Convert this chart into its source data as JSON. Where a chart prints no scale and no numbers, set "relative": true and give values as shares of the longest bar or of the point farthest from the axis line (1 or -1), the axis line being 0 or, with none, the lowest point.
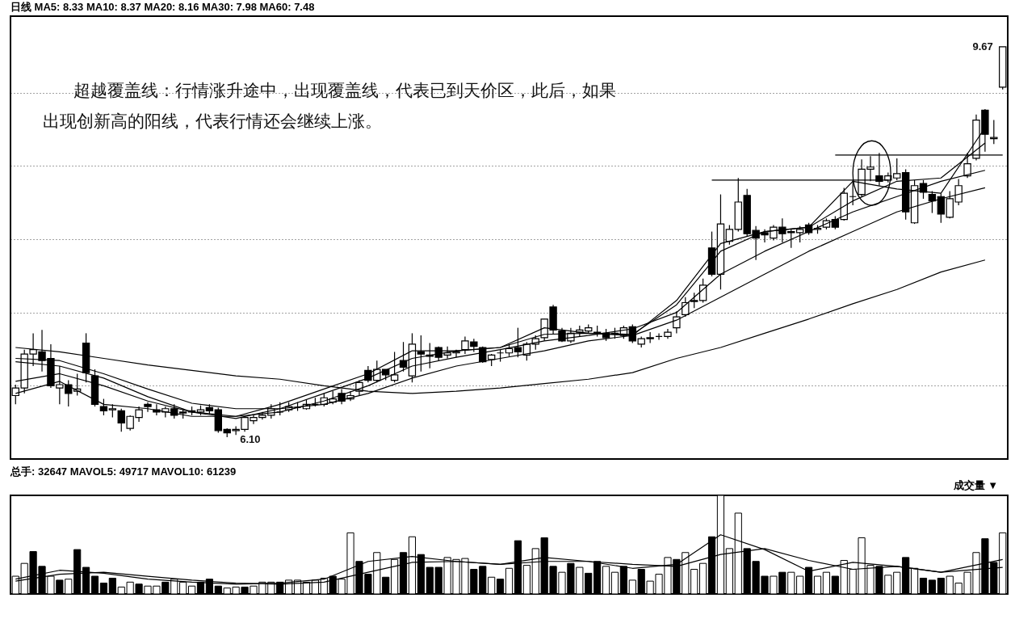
{
  "chart_data": [
    {
      "type": "candlestick",
      "title": "日线  MA5: 8.33 MA10: 8.37 MA20: 8.16 MA30: 7.98 MA60: 7.48",
      "categories": [
        null,
        null,
        null,
        null,
        null,
        null,
        null,
        null,
        null,
        null,
        null,
        null,
        null,
        null,
        null,
        null,
        null,
        null,
        null,
        null,
        null,
        null,
        null,
        null,
        null,
        null,
        null,
        null,
        null,
        null,
        null,
        null,
        null,
        null,
        null,
        null,
        null,
        null,
        null,
        null,
        null,
        null,
        null,
        null,
        null,
        null,
        null,
        null,
        null,
        null,
        null,
        null,
        null,
        null,
        null,
        null,
        null,
        null,
        null,
        null,
        null,
        null,
        null,
        null,
        null,
        null,
        null,
        null,
        null,
        null,
        null,
        null,
        null,
        null,
        null,
        null,
        null,
        null,
        null,
        null,
        null,
        null,
        null,
        null,
        null,
        null,
        null,
        null,
        null,
        null,
        null,
        null,
        null,
        null,
        null,
        null,
        null,
        null,
        null,
        null,
        null,
        null,
        null,
        null,
        null,
        null,
        null,
        null,
        null,
        null,
        null,
        null,
        null
      ],
      "ohlc": [
        [
          6.48,
          6.58,
          6.4,
          6.55
        ],
        [
          6.55,
          6.9,
          6.5,
          6.86
        ],
        [
          6.86,
          7.05,
          6.75,
          6.9
        ],
        [
          6.88,
          7.08,
          6.7,
          6.8
        ],
        [
          6.82,
          6.95,
          6.55,
          6.57
        ],
        [
          6.55,
          6.75,
          6.4,
          6.58
        ],
        [
          6.58,
          6.62,
          6.38,
          6.5
        ],
        [
          6.52,
          6.68,
          6.48,
          6.54
        ],
        [
          6.96,
          7.05,
          6.6,
          6.69
        ],
        [
          6.66,
          6.72,
          6.38,
          6.4
        ],
        [
          6.38,
          6.45,
          6.3,
          6.34
        ],
        [
          6.35,
          6.4,
          6.28,
          6.36
        ],
        [
          6.34,
          6.36,
          6.15,
          6.23
        ],
        [
          6.18,
          6.3,
          6.16,
          6.29
        ],
        [
          6.28,
          6.38,
          6.24,
          6.35
        ],
        [
          6.4,
          6.42,
          6.33,
          6.38
        ],
        [
          6.35,
          6.4,
          6.3,
          6.33
        ],
        [
          6.33,
          6.38,
          6.28,
          6.36
        ],
        [
          6.36,
          6.4,
          6.27,
          6.3
        ],
        [
          6.32,
          6.36,
          6.27,
          6.33
        ],
        [
          6.34,
          6.38,
          6.3,
          6.33
        ],
        [
          6.33,
          6.39,
          6.3,
          6.35
        ],
        [
          6.37,
          6.4,
          6.31,
          6.34
        ],
        [
          6.35,
          6.37,
          6.14,
          6.16
        ],
        [
          6.17,
          6.18,
          6.1,
          6.14
        ],
        [
          6.16,
          6.2,
          6.12,
          6.17
        ],
        [
          6.17,
          6.29,
          6.15,
          6.28
        ],
        [
          6.25,
          6.3,
          6.22,
          6.28
        ],
        [
          6.28,
          6.33,
          6.26,
          6.3
        ],
        [
          6.3,
          6.4,
          6.27,
          6.36
        ],
        [
          6.33,
          6.42,
          6.3,
          6.33
        ],
        [
          6.35,
          6.42,
          6.33,
          6.38
        ],
        [
          6.37,
          6.42,
          6.34,
          6.37
        ],
        [
          6.36,
          6.44,
          6.35,
          6.4
        ],
        [
          6.4,
          6.46,
          6.38,
          6.4
        ],
        [
          6.4,
          6.5,
          6.38,
          6.46
        ],
        [
          6.42,
          6.52,
          6.4,
          6.45
        ],
        [
          6.5,
          6.54,
          6.4,
          6.43
        ],
        [
          6.45,
          6.52,
          6.43,
          6.48
        ],
        [
          6.52,
          6.62,
          6.48,
          6.6
        ],
        [
          6.71,
          6.75,
          6.6,
          6.62
        ],
        [
          6.62,
          6.8,
          6.6,
          6.72
        ],
        [
          6.72,
          6.72,
          6.62,
          6.67
        ],
        [
          6.62,
          6.88,
          6.6,
          6.67
        ],
        [
          6.8,
          6.97,
          6.7,
          6.74
        ],
        [
          6.66,
          7.05,
          6.6,
          6.95
        ],
        [
          6.88,
          7.03,
          6.7,
          6.86
        ],
        [
          6.85,
          6.96,
          6.73,
          6.84
        ],
        [
          6.92,
          6.93,
          6.8,
          6.83
        ],
        [
          6.85,
          6.93,
          6.82,
          6.87
        ],
        [
          6.87,
          6.9,
          6.83,
          6.88
        ],
        [
          6.9,
          7.02,
          6.86,
          6.98
        ],
        [
          6.97,
          7.0,
          6.88,
          6.93
        ],
        [
          6.92,
          6.93,
          6.78,
          6.79
        ],
        [
          6.81,
          6.86,
          6.75,
          6.85
        ],
        [
          6.87,
          6.9,
          6.79,
          6.87
        ],
        [
          6.87,
          6.95,
          6.84,
          6.91
        ],
        [
          6.92,
          7.1,
          6.83,
          6.88
        ],
        [
          6.85,
          6.97,
          6.8,
          6.95
        ],
        [
          6.95,
          7.03,
          6.9,
          7.0
        ],
        [
          7.01,
          7.18,
          6.98,
          7.18
        ],
        [
          7.29,
          7.31,
          7.04,
          7.08
        ],
        [
          7.07,
          7.1,
          6.97,
          6.98
        ],
        [
          6.98,
          7.1,
          6.96,
          7.05
        ],
        [
          7.06,
          7.12,
          7.02,
          7.08
        ],
        [
          7.07,
          7.13,
          7.05,
          7.1
        ],
        [
          7.06,
          7.12,
          7.02,
          7.05
        ],
        [
          7.05,
          7.09,
          6.98,
          7.01
        ],
        [
          7.05,
          7.1,
          7.0,
          7.04
        ],
        [
          7.03,
          7.12,
          7.0,
          7.1
        ],
        [
          7.11,
          7.13,
          6.96,
          6.98
        ],
        [
          6.95,
          7.02,
          6.92,
          7.0
        ],
        [
          7.0,
          7.06,
          6.96,
          7.01
        ],
        [
          7.02,
          7.05,
          6.99,
          7.02
        ],
        [
          7.02,
          7.09,
          7.0,
          7.06
        ],
        [
          7.1,
          7.25,
          7.05,
          7.2
        ],
        [
          7.22,
          7.38,
          7.2,
          7.33
        ],
        [
          7.34,
          7.42,
          7.28,
          7.35
        ],
        [
          7.35,
          7.55,
          7.33,
          7.49
        ],
        [
          7.83,
          7.98,
          7.57,
          7.59
        ],
        [
          7.59,
          8.32,
          7.45,
          8.05
        ],
        [
          7.89,
          8.04,
          7.86,
          8.0
        ],
        [
          8.0,
          8.47,
          7.98,
          8.25
        ],
        [
          8.31,
          8.37,
          7.94,
          7.96
        ],
        [
          7.99,
          8.03,
          7.72,
          7.92
        ],
        [
          7.97,
          8.0,
          7.88,
          7.95
        ],
        [
          7.92,
          8.04,
          7.9,
          8.02
        ],
        [
          8.02,
          8.1,
          7.88,
          7.96
        ],
        [
          7.97,
          8.0,
          7.83,
          7.98
        ],
        [
          7.97,
          8.03,
          7.88,
          8.0
        ],
        [
          8.04,
          8.06,
          7.95,
          7.97
        ],
        [
          8.0,
          8.04,
          7.96,
          8.01
        ],
        [
          8.02,
          8.1,
          8.0,
          8.08
        ],
        [
          8.09,
          8.12,
          8.0,
          8.02
        ],
        [
          8.09,
          8.38,
          8.08,
          8.33
        ],
        [
          8.3,
          8.45,
          8.22,
          8.3
        ],
        [
          8.32,
          8.64,
          8.3,
          8.55
        ],
        [
          8.55,
          8.67,
          8.44,
          8.57
        ],
        [
          8.49,
          8.7,
          8.4,
          8.44
        ],
        [
          8.45,
          8.52,
          8.43,
          8.49
        ],
        [
          8.47,
          8.65,
          8.45,
          8.51
        ],
        [
          8.52,
          8.55,
          8.09,
          8.16
        ],
        [
          8.06,
          8.45,
          8.05,
          8.4
        ],
        [
          8.42,
          8.45,
          8.28,
          8.34
        ],
        [
          8.32,
          8.35,
          8.15,
          8.26
        ],
        [
          8.3,
          8.33,
          8.06,
          8.14
        ],
        [
          8.11,
          8.35,
          8.1,
          8.28
        ],
        [
          8.25,
          8.46,
          8.22,
          8.4
        ],
        [
          8.49,
          8.7,
          8.47,
          8.6
        ],
        [
          8.65,
          9.05,
          8.63,
          9.0
        ],
        [
          9.09,
          9.1,
          8.71,
          8.87
        ],
        [
          8.83,
          9.0,
          8.78,
          8.84
        ],
        [
          9.3,
          9.67,
          9.28,
          9.67
        ]
      ],
      "series": [
        {
          "type": "line",
          "color": "#000000",
          "values": [
            6.5,
            null,
            null,
            null,
            null,
            6.61,
            null,
            null,
            null,
            null,
            6.4,
            null,
            null,
            null,
            null,
            6.36,
            null,
            null,
            null,
            null,
            6.29,
            null,
            null,
            null,
            null,
            6.29,
            null,
            null,
            null,
            null,
            6.4,
            null,
            null,
            null,
            null,
            6.54,
            null,
            null,
            null,
            null,
            6.68,
            null,
            null,
            null,
            null,
            6.89,
            null,
            null,
            null,
            null,
            6.89,
            null,
            null,
            null,
            null,
            6.92,
            null,
            null,
            null,
            null,
            7.1,
            null,
            null,
            null,
            null,
            7.05,
            null,
            null,
            null,
            null,
            7.03,
            null,
            null,
            null,
            null,
            7.35,
            null,
            null,
            null,
            null,
            7.87,
            null,
            null,
            null,
            null,
            7.98,
            null,
            null,
            null,
            null,
            8.02,
            null,
            null,
            null,
            null,
            8.44,
            null,
            null,
            null,
            null,
            8.37,
            null,
            null,
            null,
            null,
            8.33,
            null,
            null,
            null,
            null,
            8.93,
            null,
            null
          ]
        },
        {
          "type": "line",
          "color": "#000000",
          "values": [
            6.61,
            null,
            null,
            null,
            null,
            6.68,
            null,
            null,
            null,
            null,
            6.57,
            null,
            null,
            null,
            null,
            6.43,
            null,
            null,
            null,
            null,
            6.33,
            null,
            null,
            null,
            null,
            6.27,
            null,
            null,
            null,
            null,
            6.36,
            null,
            null,
            null,
            null,
            6.5,
            null,
            null,
            null,
            null,
            6.64,
            null,
            null,
            null,
            null,
            6.82,
            null,
            null,
            null,
            null,
            6.89,
            null,
            null,
            null,
            null,
            6.92,
            null,
            null,
            null,
            null,
            7.04,
            null,
            null,
            null,
            null,
            7.05,
            null,
            null,
            null,
            null,
            7.04,
            null,
            null,
            null,
            null,
            7.31,
            null,
            null,
            null,
            null,
            7.8,
            null,
            null,
            null,
            null,
            7.98,
            null,
            null,
            null,
            null,
            8.02,
            null,
            null,
            null,
            null,
            8.26,
            null,
            null,
            null,
            null,
            8.44,
            null,
            null,
            null,
            null,
            8.47,
            null,
            null,
            null,
            null,
            8.79,
            null,
            null
          ]
        },
        {
          "type": "line",
          "color": "#000000",
          "values": [
            6.79,
            null,
            null,
            null,
            null,
            6.75,
            null,
            null,
            null,
            null,
            6.64,
            null,
            null,
            null,
            null,
            6.47,
            null,
            null,
            null,
            null,
            6.33,
            null,
            null,
            null,
            null,
            6.29,
            null,
            null,
            null,
            null,
            6.33,
            null,
            null,
            null,
            null,
            6.43,
            null,
            null,
            null,
            null,
            6.57,
            null,
            null,
            null,
            null,
            6.75,
            null,
            null,
            null,
            null,
            6.83,
            null,
            null,
            null,
            null,
            6.9,
            null,
            null,
            null,
            null,
            6.98,
            null,
            null,
            null,
            null,
            7.03,
            null,
            null,
            null,
            null,
            7.09,
            null,
            null,
            null,
            null,
            7.24,
            null,
            null,
            null,
            null,
            7.59,
            null,
            null,
            null,
            null,
            7.8,
            null,
            null,
            null,
            null,
            7.98,
            null,
            null,
            null,
            null,
            8.16,
            null,
            null,
            null,
            null,
            8.3,
            null,
            null,
            null,
            null,
            8.44,
            null,
            null,
            null,
            null,
            8.54,
            null,
            null
          ]
        },
        {
          "type": "line",
          "color": "#000000",
          "values": [
            6.82,
            null,
            null,
            null,
            null,
            6.8,
            null,
            null,
            null,
            null,
            6.68,
            null,
            null,
            null,
            null,
            6.54,
            null,
            null,
            null,
            null,
            6.41,
            null,
            null,
            null,
            null,
            6.36,
            null,
            null,
            null,
            null,
            6.36,
            null,
            null,
            null,
            null,
            6.4,
            null,
            null,
            null,
            null,
            6.5,
            null,
            null,
            null,
            null,
            6.64,
            null,
            null,
            null,
            null,
            6.75,
            null,
            null,
            null,
            null,
            6.82,
            null,
            null,
            null,
            null,
            6.89,
            null,
            null,
            null,
            null,
            6.98,
            null,
            null,
            null,
            null,
            7.03,
            null,
            null,
            null,
            null,
            7.17,
            null,
            null,
            null,
            null,
            7.38,
            null,
            null,
            null,
            null,
            7.59,
            null,
            null,
            null,
            null,
            7.8,
            null,
            null,
            null,
            null,
            7.98,
            null,
            null,
            null,
            null,
            8.16,
            null,
            null,
            null,
            null,
            8.28,
            null,
            null,
            null,
            null,
            8.38,
            null,
            null
          ]
        },
        {
          "type": "line",
          "color": "#000000",
          "values": [
            6.92,
            null,
            null,
            null,
            null,
            6.88,
            null,
            null,
            null,
            null,
            6.82,
            null,
            null,
            null,
            null,
            6.76,
            null,
            null,
            null,
            null,
            6.71,
            null,
            null,
            null,
            null,
            6.66,
            null,
            null,
            null,
            null,
            6.63,
            null,
            null,
            null,
            null,
            6.57,
            null,
            null,
            null,
            null,
            6.52,
            null,
            null,
            null,
            null,
            6.5,
            null,
            null,
            null,
            null,
            6.52,
            null,
            null,
            null,
            null,
            6.55,
            null,
            null,
            null,
            null,
            6.59,
            null,
            null,
            null,
            null,
            6.63,
            null,
            null,
            null,
            null,
            6.69,
            null,
            null,
            null,
            null,
            6.82,
            null,
            null,
            null,
            null,
            6.92,
            null,
            null,
            null,
            null,
            7.05,
            null,
            null,
            null,
            null,
            7.18,
            null,
            null,
            null,
            null,
            7.32,
            null,
            null,
            null,
            null,
            7.45,
            null,
            null,
            null,
            null,
            7.61,
            null,
            null,
            null,
            null,
            7.72,
            null,
            null
          ]
        },
        {
          "type": "line",
          "color": "#000000",
          "values": [
            null,
            null,
            null,
            null,
            null,
            null,
            null,
            null,
            null,
            null,
            null,
            null,
            null,
            null,
            null,
            null,
            null,
            null,
            null,
            null,
            null,
            null,
            null,
            null,
            null,
            null,
            null,
            null,
            null,
            null,
            null,
            null,
            null,
            null,
            null,
            null,
            null,
            null,
            null,
            null,
            null,
            null,
            null,
            null,
            null,
            null,
            null,
            null,
            null,
            null,
            null,
            null,
            null,
            null,
            null,
            null,
            null,
            null,
            null,
            null,
            null,
            null,
            null,
            null,
            null,
            null,
            null,
            null,
            null,
            null,
            null,
            null,
            null,
            null,
            null,
            null,
            null,
            null,
            null,
            8.45,
            8.45,
            8.45,
            8.45,
            8.45,
            8.45,
            8.45,
            8.45,
            8.45,
            8.45,
            8.45,
            8.45,
            8.45,
            8.45,
            8.45,
            8.45,
            8.45,
            8.45,
            8.45,
            8.45,
            8.45,
            null,
            null,
            null,
            null,
            null,
            null,
            null,
            null,
            null,
            null,
            null,
            null,
            null
          ]
        },
        {
          "type": "line",
          "color": "#000000",
          "values": [
            null,
            null,
            null,
            null,
            null,
            null,
            null,
            null,
            null,
            null,
            null,
            null,
            null,
            null,
            null,
            null,
            null,
            null,
            null,
            null,
            null,
            null,
            null,
            null,
            null,
            null,
            null,
            null,
            null,
            null,
            null,
            null,
            null,
            null,
            null,
            null,
            null,
            null,
            null,
            null,
            null,
            null,
            null,
            null,
            null,
            null,
            null,
            null,
            null,
            null,
            null,
            null,
            null,
            null,
            null,
            null,
            null,
            null,
            null,
            null,
            null,
            null,
            null,
            null,
            null,
            null,
            null,
            null,
            null,
            null,
            null,
            null,
            null,
            null,
            null,
            null,
            null,
            null,
            null,
            null,
            null,
            null,
            null,
            null,
            null,
            null,
            null,
            null,
            null,
            null,
            null,
            null,
            null,
            8.68,
            8.68,
            8.68,
            8.68,
            8.68,
            8.68,
            8.68,
            8.68,
            8.68,
            8.68,
            8.68,
            8.68,
            8.68,
            8.68,
            8.68,
            8.68,
            8.68,
            8.68,
            8.68,
            8.68
          ]
        }
      ],
      "ylim": [
        5.9,
        9.95
      ],
      "yticks": [
        {
          "value": 6.57,
          "label": null
        },
        {
          "value": 7.24,
          "label": null
        },
        {
          "value": 7.91,
          "label": null
        },
        {
          "value": 8.58,
          "label": null
        },
        {
          "value": 9.25,
          "label": null
        }
      ],
      "grid": "y",
      "annotations": [
        "超越覆盖线：行情涨升途中，出现覆盖线，代表已到天价区，此后，如果",
        "出现创新高的阳线，代表行情还会继续上涨。",
        "9.67",
        "6.10"
      ]
    },
    {
      "type": "bar",
      "relative": true,
      "title": "总手: 32647 MAVOL5: 49717 MAVOL10: 61239",
      "categories": [
        null,
        null,
        null,
        null,
        null,
        null,
        null,
        null,
        null,
        null,
        null,
        null,
        null,
        null,
        null,
        null,
        null,
        null,
        null,
        null,
        null,
        null,
        null,
        null,
        null,
        null,
        null,
        null,
        null,
        null,
        null,
        null,
        null,
        null,
        null,
        null,
        null,
        null,
        null,
        null,
        null,
        null,
        null,
        null,
        null,
        null,
        null,
        null,
        null,
        null,
        null,
        null,
        null,
        null,
        null,
        null,
        null,
        null,
        null,
        null,
        null,
        null,
        null,
        null,
        null,
        null,
        null,
        null,
        null,
        null,
        null,
        null,
        null,
        null,
        null,
        null,
        null,
        null,
        null,
        null,
        null,
        null,
        null,
        null,
        null,
        null,
        null,
        null,
        null,
        null,
        null,
        null,
        null,
        null,
        null,
        null,
        null,
        null,
        null,
        null,
        null,
        null,
        null,
        null,
        null,
        null,
        null,
        null,
        null,
        null,
        null,
        null,
        null
      ],
      "series": [
        {
          "type": "bar",
          "values": [
            0.18,
            0.31,
            0.43,
            0.28,
            0.18,
            0.14,
            0.15,
            0.45,
            0.27,
            0.18,
            0.11,
            0.16,
            0.07,
            0.12,
            0.1,
            0.08,
            0.08,
            0.12,
            0.15,
            0.12,
            0.08,
            0.12,
            0.15,
            0.08,
            0.06,
            0.07,
            0.07,
            0.08,
            0.12,
            0.12,
            0.12,
            0.14,
            0.14,
            0.12,
            0.14,
            0.16,
            0.18,
            0.15,
            0.62,
            0.33,
            0.2,
            0.42,
            0.17,
            0.35,
            0.42,
            0.58,
            0.4,
            0.27,
            0.27,
            0.37,
            0.35,
            0.36,
            0.25,
            0.28,
            0.17,
            0.15,
            0.26,
            0.54,
            0.29,
            0.46,
            0.57,
            0.28,
            0.22,
            0.31,
            0.27,
            0.21,
            0.33,
            0.28,
            0.22,
            0.28,
            0.14,
            0.25,
            0.13,
            0.2,
            0.37,
            0.35,
            0.42,
            0.25,
            0.31,
            0.58,
            1.0,
            0.46,
            0.82,
            0.46,
            0.33,
            0.18,
            0.18,
            0.22,
            0.22,
            0.18,
            0.27,
            0.18,
            0.22,
            0.18,
            0.34,
            0.25,
            0.57,
            0.29,
            0.28,
            0.19,
            0.22,
            0.37,
            0.26,
            0.16,
            0.14,
            0.16,
            0.18,
            0.11,
            0.22,
            0.42,
            0.56,
            0.32,
            0.62
          ],
          "colors": [
            "#ffffff",
            "#ffffff",
            "#000000",
            "#000000",
            "#ffffff",
            "#000000",
            "#ffffff",
            "#000000",
            "#000000",
            "#000000",
            "#000000",
            "#000000",
            "#ffffff",
            "#ffffff",
            "#000000",
            "#ffffff",
            "#ffffff",
            "#000000",
            "#ffffff",
            "#ffffff",
            "#ffffff",
            "#000000",
            "#000000",
            "#000000",
            "#ffffff",
            "#ffffff",
            "#000000",
            "#ffffff",
            "#ffffff",
            "#ffffff",
            "#000000",
            "#ffffff",
            "#ffffff",
            "#ffffff",
            "#ffffff",
            "#ffffff",
            "#000000",
            "#ffffff",
            "#ffffff",
            "#000000",
            "#000000",
            "#ffffff",
            "#000000",
            "#ffffff",
            "#000000",
            "#ffffff",
            "#000000",
            "#000000",
            "#000000",
            "#ffffff",
            "#ffffff",
            "#ffffff",
            "#000000",
            "#000000",
            "#ffffff",
            "#000000",
            "#ffffff",
            "#000000",
            "#ffffff",
            "#ffffff",
            "#000000",
            "#000000",
            "#ffffff",
            "#000000",
            "#ffffff",
            "#000000",
            "#000000",
            "#ffffff",
            "#ffffff",
            "#000000",
            "#ffffff",
            "#000000",
            "#ffffff",
            "#ffffff",
            "#ffffff",
            "#000000",
            "#ffffff",
            "#ffffff",
            "#ffffff",
            "#000000",
            "#ffffff",
            "#ffffff",
            "#ffffff",
            "#000000",
            "#000000",
            "#000000",
            "#ffffff",
            "#000000",
            "#ffffff",
            "#ffffff",
            "#000000",
            "#ffffff",
            "#ffffff",
            "#000000",
            "#ffffff",
            "#ffffff",
            "#ffffff",
            "#ffffff",
            "#000000",
            "#ffffff",
            "#ffffff",
            "#000000",
            "#ffffff",
            "#000000",
            "#000000",
            "#000000",
            "#ffffff",
            "#ffffff",
            "#ffffff",
            "#ffffff",
            "#000000",
            "#000000",
            "#ffffff"
          ]
        },
        {
          "type": "line",
          "color": "#000000",
          "values": [
            0.15,
            null,
            null,
            null,
            null,
            0.24,
            null,
            null,
            null,
            null,
            0.21,
            null,
            null,
            null,
            null,
            0.15,
            null,
            null,
            null,
            null,
            0.12,
            null,
            null,
            null,
            null,
            0.1,
            null,
            null,
            null,
            null,
            0.11,
            null,
            null,
            null,
            null,
            0.15,
            null,
            null,
            null,
            null,
            0.33,
            null,
            null,
            null,
            null,
            0.38,
            null,
            null,
            null,
            null,
            0.33,
            null,
            null,
            null,
            null,
            0.3,
            null,
            null,
            null,
            null,
            0.37,
            null,
            null,
            null,
            null,
            0.33,
            null,
            null,
            null,
            null,
            0.26,
            null,
            null,
            null,
            null,
            0.3,
            null,
            null,
            null,
            null,
            0.6,
            null,
            null,
            null,
            null,
            0.45,
            null,
            null,
            null,
            null,
            0.23,
            null,
            null,
            null,
            null,
            0.32,
            null,
            null,
            null,
            null,
            0.28,
            null,
            null,
            null,
            null,
            0.22,
            null,
            null,
            null,
            null,
            null,
            null,
            0.35
          ]
        },
        {
          "type": "line",
          "color": "#000000",
          "values": [
            0.13,
            null,
            null,
            null,
            null,
            0.2,
            null,
            null,
            null,
            null,
            0.22,
            null,
            null,
            null,
            null,
            0.18,
            null,
            null,
            null,
            null,
            0.14,
            null,
            null,
            null,
            null,
            0.11,
            null,
            null,
            null,
            null,
            0.1,
            null,
            null,
            null,
            null,
            0.12,
            null,
            null,
            null,
            null,
            0.22,
            null,
            null,
            null,
            null,
            0.32,
            null,
            null,
            null,
            null,
            0.33,
            null,
            null,
            null,
            null,
            0.3,
            null,
            null,
            null,
            null,
            0.33,
            null,
            null,
            null,
            null,
            0.33,
            null,
            null,
            null,
            null,
            0.3,
            null,
            null,
            null,
            null,
            0.28,
            null,
            null,
            null,
            null,
            0.4,
            null,
            null,
            null,
            null,
            0.46,
            null,
            null,
            null,
            null,
            0.34,
            null,
            null,
            null,
            null,
            0.25,
            null,
            null,
            null,
            null,
            0.28,
            null,
            null,
            null,
            null,
            0.22,
            null,
            null,
            null,
            null,
            null,
            null,
            0.27
          ]
        }
      ],
      "annotations": [
        "成交量 ▼"
      ]
    }
  ]
}
